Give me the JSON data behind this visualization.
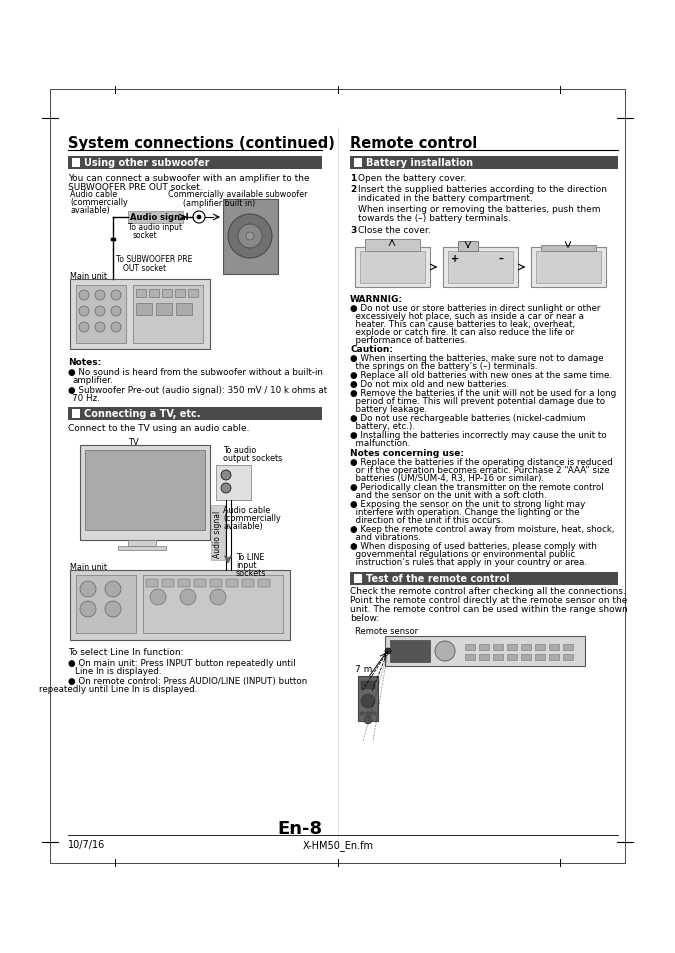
{
  "page_bg": "#ffffff",
  "header_left": "System connections (continued)",
  "header_right": "Remote control",
  "section_bar_color": "#4a4a4a",
  "footer_left": "10/7/16",
  "footer_center": "X-HM50_En.fm",
  "footer_page": "En-8"
}
